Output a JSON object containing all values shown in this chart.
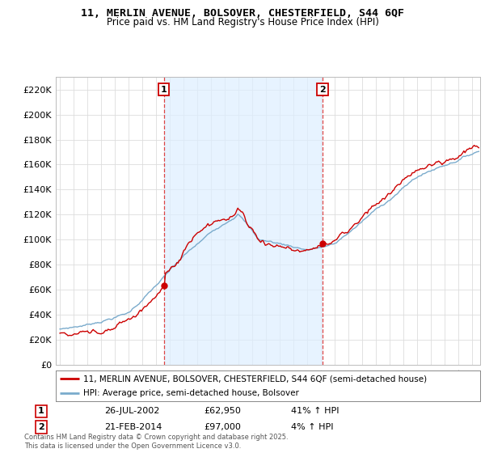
{
  "title": "11, MERLIN AVENUE, BOLSOVER, CHESTERFIELD, S44 6QF",
  "subtitle": "Price paid vs. HM Land Registry's House Price Index (HPI)",
  "legend_line1": "11, MERLIN AVENUE, BOLSOVER, CHESTERFIELD, S44 6QF (semi-detached house)",
  "legend_line2": "HPI: Average price, semi-detached house, Bolsover",
  "footnote": "Contains HM Land Registry data © Crown copyright and database right 2025.\nThis data is licensed under the Open Government Licence v3.0.",
  "sale1_date": "26-JUL-2002",
  "sale1_price": "£62,950",
  "sale1_hpi": "41% ↑ HPI",
  "sale2_date": "21-FEB-2014",
  "sale2_price": "£97,000",
  "sale2_hpi": "4% ↑ HPI",
  "sale1_x": 2002.57,
  "sale1_y": 62950,
  "sale2_x": 2014.13,
  "sale2_y": 97000,
  "ylim": [
    0,
    230000
  ],
  "yticks": [
    0,
    20000,
    40000,
    60000,
    80000,
    100000,
    120000,
    140000,
    160000,
    180000,
    200000,
    220000
  ],
  "xlim_left": 1994.7,
  "xlim_right": 2025.6,
  "background_color": "#ffffff",
  "grid_color": "#dddddd",
  "red_color": "#cc0000",
  "blue_color": "#7aabcc",
  "fill_color": "#ddeeff",
  "dashed_color": "#dd4444",
  "title_fontsize": 9.5,
  "subtitle_fontsize": 8.5
}
